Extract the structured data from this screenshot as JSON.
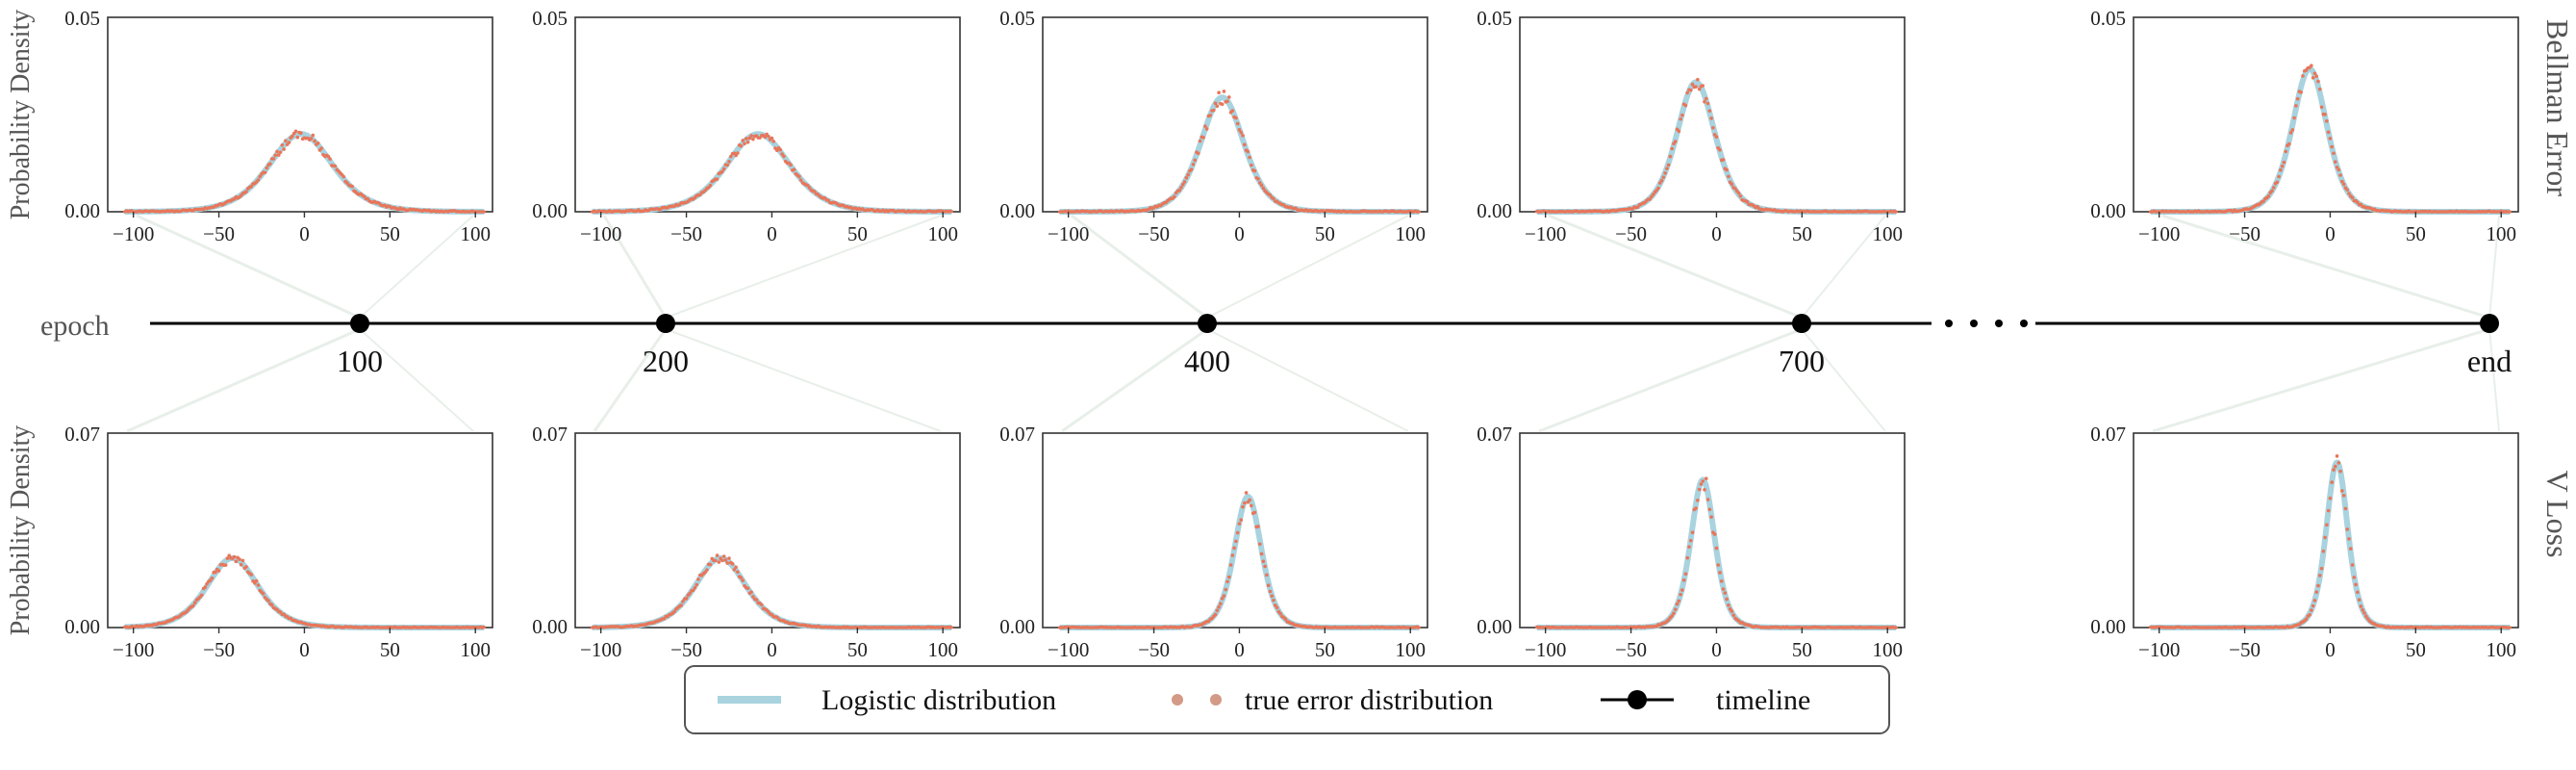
{
  "chart_data": {
    "type": "line",
    "layout": "2 rows x 5 panels with shared epoch timeline",
    "rows": [
      {
        "label": "Bellman Error",
        "ylabel": "Probability Density",
        "ylim": [
          0,
          0.05
        ],
        "yticks": [
          "0.00",
          "0.05"
        ],
        "xlim": [
          -115,
          110
        ],
        "xticks": [
          "-100",
          "-50",
          "0",
          "50",
          "100"
        ],
        "panels": [
          {
            "epoch": "100",
            "mu": -2,
            "s": 12.5,
            "skew": 0.02
          },
          {
            "epoch": "200",
            "mu": -8,
            "s": 12.5,
            "skew": 0.03
          },
          {
            "epoch": "400",
            "mu": -10,
            "s": 8.5,
            "skew": 0.02
          },
          {
            "epoch": "700",
            "mu": -12,
            "s": 7.5,
            "skew": 0.01
          },
          {
            "epoch": "end",
            "mu": -12,
            "s": 6.8,
            "skew": 0.01
          }
        ]
      },
      {
        "label": "V Loss",
        "ylabel": "Probability Density",
        "ylim": [
          0,
          0.07
        ],
        "yticks": [
          "0.00",
          "0.07"
        ],
        "xlim": [
          -115,
          110
        ],
        "xticks": [
          "-100",
          "-50",
          "0",
          "50",
          "100"
        ],
        "panels": [
          {
            "epoch": "100",
            "mu": -42,
            "s": 10,
            "skew": 0.02
          },
          {
            "epoch": "200",
            "mu": -30,
            "s": 10,
            "skew": 0.03
          },
          {
            "epoch": "400",
            "mu": 5,
            "s": 5.3,
            "skew": 0.02
          },
          {
            "epoch": "700",
            "mu": -8,
            "s": 4.7,
            "skew": 0.01
          },
          {
            "epoch": "end",
            "mu": 4,
            "s": 4.2,
            "skew": 0.01
          }
        ]
      }
    ],
    "timeline": {
      "label": "epoch",
      "points": [
        "100",
        "200",
        "400",
        "700",
        "end"
      ],
      "ellipsis": "· · · ·"
    },
    "legend": {
      "placement": "bottom-center",
      "entries": [
        {
          "label": "Logistic distribution",
          "style": "line",
          "color": "#a8d3df"
        },
        {
          "label": "true error distribution",
          "style": "points",
          "color": "#e8765a"
        },
        {
          "label": "timeline",
          "style": "line-marker",
          "color": "#000000"
        }
      ]
    },
    "colors": {
      "logistic": "#a8d3df",
      "true_error": "#e8765a",
      "legend_dot": "#d39a86",
      "timeline": "#000000",
      "connector": "#e8efe9"
    }
  }
}
